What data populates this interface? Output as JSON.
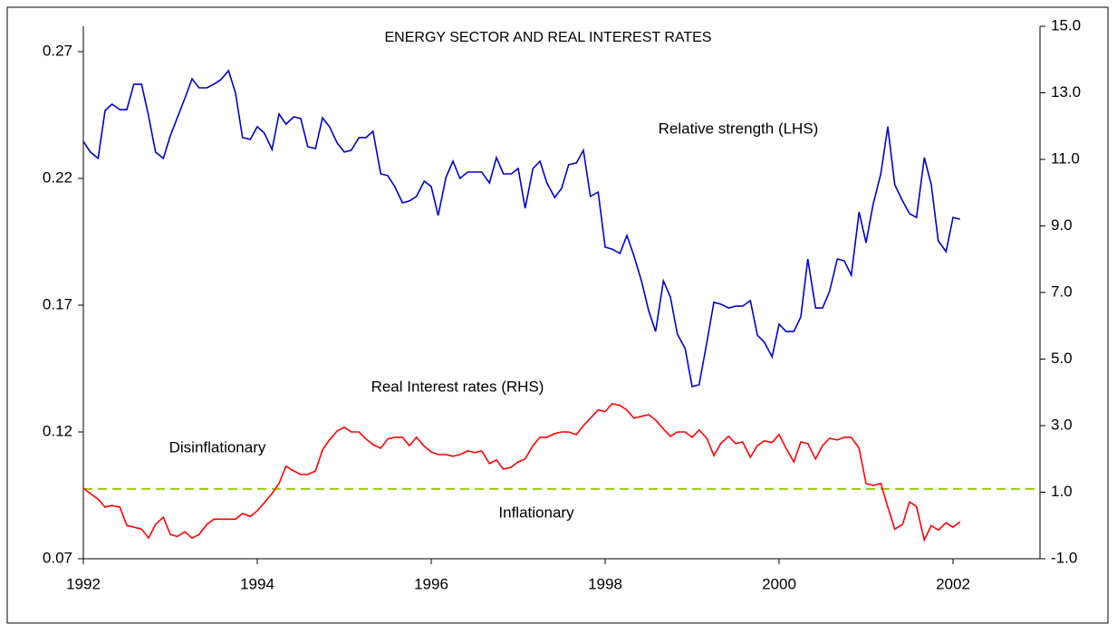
{
  "chart_data": {
    "type": "line",
    "title": "ENERGY SECTOR AND REAL INTEREST RATES",
    "annotations": [
      "Relative strength (LHS)",
      "Real Interest rates (RHS)",
      "Disinflationary",
      "Inflationary"
    ],
    "x": [
      1992,
      1992.08,
      1992.17,
      1992.25,
      1992.33,
      1992.42,
      1992.5,
      1992.58,
      1992.67,
      1992.75,
      1992.83,
      1992.92,
      1993,
      1993.08,
      1993.17,
      1993.25,
      1993.33,
      1993.42,
      1993.5,
      1993.58,
      1993.67,
      1993.75,
      1993.83,
      1993.92,
      1994,
      1994.08,
      1994.17,
      1994.25,
      1994.33,
      1994.42,
      1994.5,
      1994.58,
      1994.67,
      1994.75,
      1994.83,
      1994.92,
      1995,
      1995.08,
      1995.17,
      1995.25,
      1995.33,
      1995.42,
      1995.5,
      1995.58,
      1995.67,
      1995.75,
      1995.83,
      1995.92,
      1996,
      1996.08,
      1996.17,
      1996.25,
      1996.33,
      1996.42,
      1996.5,
      1996.58,
      1996.67,
      1996.75,
      1996.83,
      1996.92,
      1997,
      1997.08,
      1997.17,
      1997.25,
      1997.33,
      1997.42,
      1997.5,
      1997.58,
      1997.67,
      1997.75,
      1997.83,
      1997.92,
      1998,
      1998.08,
      1998.17,
      1998.25,
      1998.33,
      1998.42,
      1998.5,
      1998.58,
      1998.67,
      1998.75,
      1998.83,
      1998.92,
      1999,
      1999.08,
      1999.17,
      1999.25,
      1999.33,
      1999.42,
      1999.5,
      1999.58,
      1999.67,
      1999.75,
      1999.83,
      1999.92,
      2000,
      2000.08,
      2000.17,
      2000.25,
      2000.33,
      2000.42,
      2000.5,
      2000.58,
      2000.67,
      2000.75,
      2000.83,
      2000.92,
      2001,
      2001.08,
      2001.17,
      2001.25,
      2001.33,
      2001.42,
      2001.5,
      2001.58,
      2001.67,
      2001.75,
      2001.83,
      2001.92,
      2002,
      2002.08
    ],
    "series": [
      {
        "name": "Relative strength (LHS)",
        "color": "#0000cc",
        "values": [
          0.2346,
          0.2304,
          0.2279,
          0.2468,
          0.2493,
          0.2471,
          0.2471,
          0.2571,
          0.2571,
          0.2446,
          0.2304,
          0.2279,
          0.2368,
          0.2439,
          0.2518,
          0.2593,
          0.2557,
          0.2557,
          0.2571,
          0.2589,
          0.2625,
          0.2536,
          0.2361,
          0.2354,
          0.2404,
          0.2379,
          0.2314,
          0.2454,
          0.2414,
          0.2443,
          0.2436,
          0.2325,
          0.2318,
          0.2439,
          0.2404,
          0.2339,
          0.2304,
          0.2311,
          0.2361,
          0.2361,
          0.2386,
          0.2218,
          0.2211,
          0.2168,
          0.2104,
          0.2111,
          0.2129,
          0.2189,
          0.2168,
          0.2054,
          0.2204,
          0.2268,
          0.22,
          0.2225,
          0.2225,
          0.2225,
          0.2182,
          0.2282,
          0.2218,
          0.2218,
          0.2239,
          0.2082,
          0.2239,
          0.2268,
          0.2182,
          0.2125,
          0.2161,
          0.2254,
          0.2261,
          0.2311,
          0.2129,
          0.2146,
          0.1929,
          0.1921,
          0.1904,
          0.1975,
          0.1896,
          0.1793,
          0.1679,
          0.1596,
          0.1796,
          0.1732,
          0.1586,
          0.1529,
          0.1379,
          0.1386,
          0.1554,
          0.1711,
          0.1704,
          0.1689,
          0.1696,
          0.1696,
          0.1718,
          0.1582,
          0.1554,
          0.1496,
          0.1625,
          0.1596,
          0.1596,
          0.1654,
          0.1882,
          0.1689,
          0.1689,
          0.1754,
          0.1882,
          0.1875,
          0.1818,
          0.2068,
          0.1946,
          0.2096,
          0.2218,
          0.2404,
          0.2175,
          0.2111,
          0.2061,
          0.2046,
          0.2282,
          0.2175,
          0.1954,
          0.1911,
          0.2046,
          0.2039
        ]
      },
      {
        "name": "Real Interest rates (RHS)",
        "color": "#ff0000",
        "axis": "y2",
        "values": [
          1.12,
          0.96,
          0.79,
          0.55,
          0.6,
          0.55,
          0,
          -0.05,
          -0.11,
          -0.38,
          0.03,
          0.25,
          -0.27,
          -0.33,
          -0.19,
          -0.38,
          -0.27,
          0.03,
          0.19,
          0.19,
          0.19,
          0.19,
          0.36,
          0.27,
          0.44,
          0.68,
          0.96,
          1.26,
          1.78,
          1.64,
          1.53,
          1.53,
          1.64,
          2.27,
          2.57,
          2.84,
          2.95,
          2.81,
          2.81,
          2.6,
          2.43,
          2.32,
          2.6,
          2.65,
          2.65,
          2.4,
          2.65,
          2.38,
          2.21,
          2.13,
          2.13,
          2.08,
          2.13,
          2.24,
          2.19,
          2.24,
          1.86,
          1.97,
          1.69,
          1.75,
          1.91,
          2,
          2.4,
          2.65,
          2.65,
          2.76,
          2.81,
          2.81,
          2.73,
          3,
          3.22,
          3.47,
          3.42,
          3.66,
          3.61,
          3.47,
          3.22,
          3.28,
          3.33,
          3.17,
          2.9,
          2.68,
          2.81,
          2.81,
          2.65,
          2.87,
          2.62,
          2.1,
          2.46,
          2.68,
          2.46,
          2.51,
          2.05,
          2.4,
          2.54,
          2.49,
          2.73,
          2.32,
          1.91,
          2.51,
          2.46,
          2,
          2.4,
          2.62,
          2.57,
          2.65,
          2.65,
          2.32,
          1.26,
          1.2,
          1.26,
          0.55,
          -0.11,
          0.03,
          0.71,
          0.57,
          -0.44,
          0,
          -0.14,
          0.08,
          -0.05,
          0.11
        ]
      }
    ],
    "reference_line": {
      "value": 1.1,
      "axis": "y2",
      "color": "#99cc00"
    },
    "xlim": [
      1992,
      2003
    ],
    "xticks": [
      1992,
      1994,
      1996,
      1998,
      2000,
      2002
    ],
    "ylim": [
      0.07,
      0.28
    ],
    "yticks": [
      0.07,
      0.12,
      0.17,
      0.22,
      0.27
    ],
    "y2lim": [
      -1,
      15
    ],
    "y2ticks": [
      {
        "value": -1,
        "label": "-1.0"
      },
      {
        "value": 1,
        "label": "1.0"
      },
      {
        "value": 3,
        "label": "3.0"
      },
      {
        "value": 5,
        "label": "5.0"
      },
      {
        "value": 7,
        "label": "7.0"
      },
      {
        "value": 9,
        "label": "9.0"
      },
      {
        "value": 11,
        "label": "11.0"
      },
      {
        "value": 13,
        "label": "13.0"
      },
      {
        "value": 15,
        "label": "15.0"
      }
    ],
    "grid": false
  }
}
